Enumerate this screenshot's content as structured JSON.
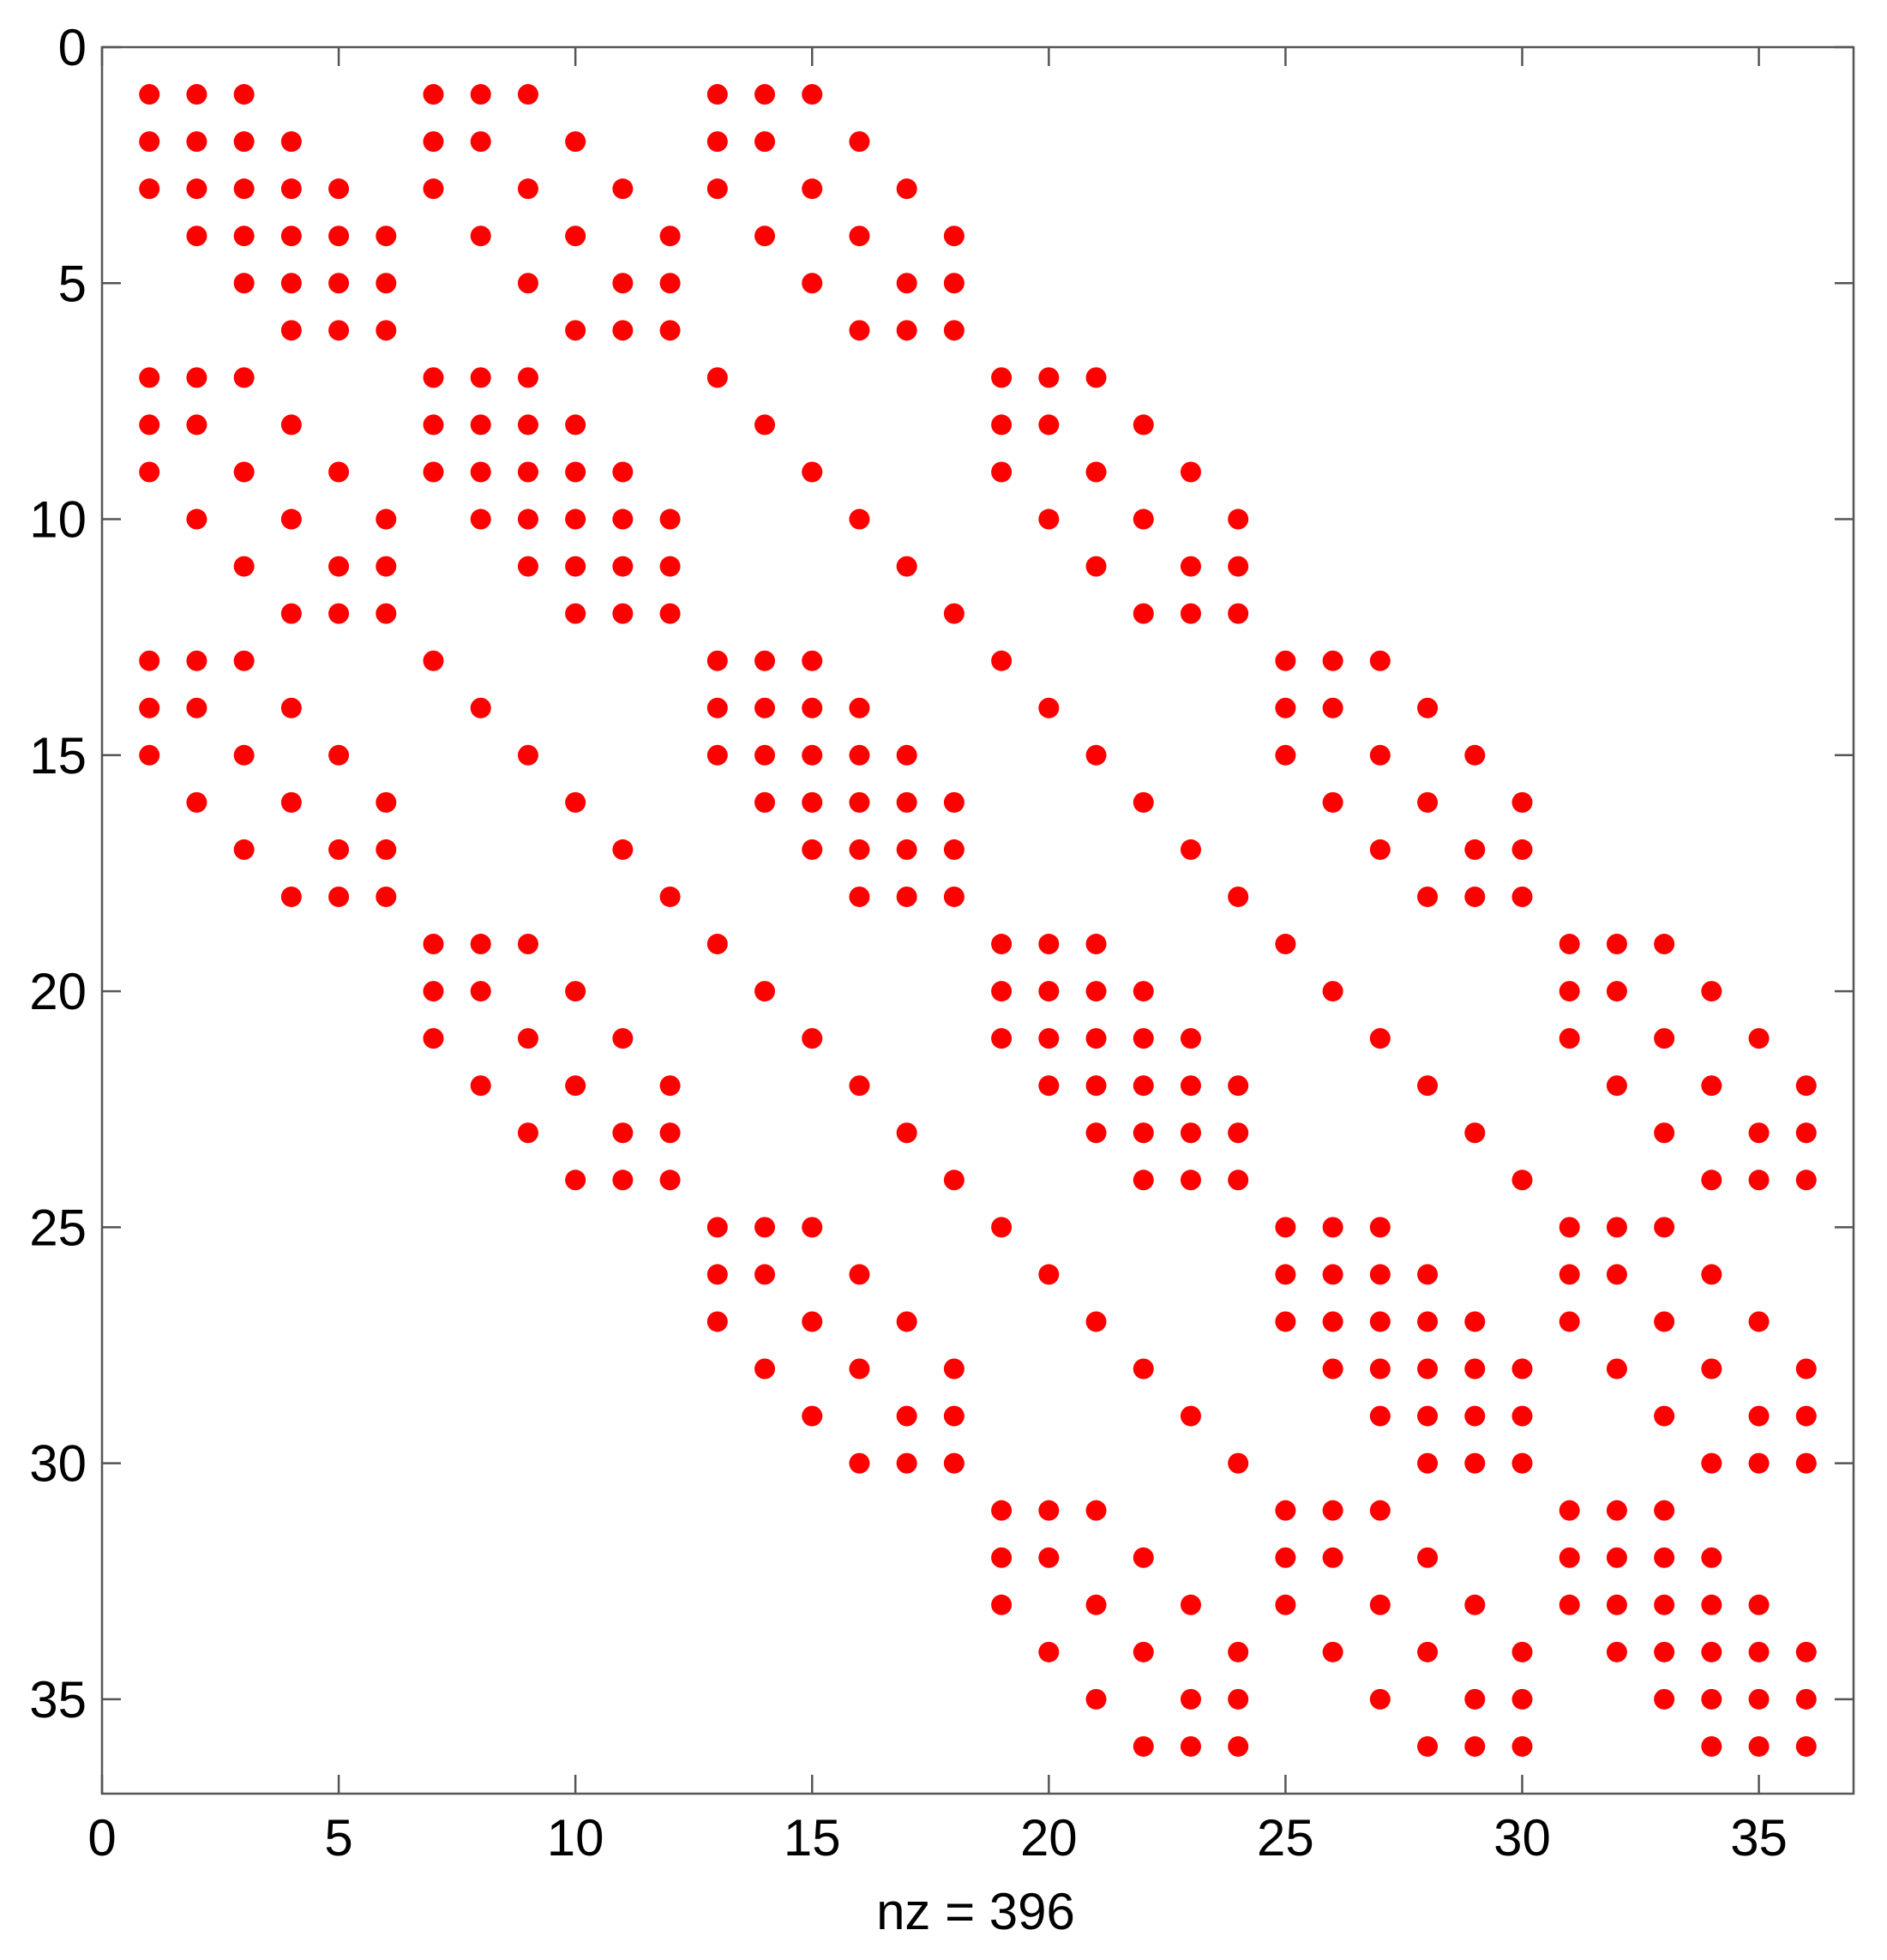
{
  "chart_data": {
    "type": "spy",
    "xlabel": "nz = 396",
    "color": "#ff0000",
    "xlim": [
      0,
      37
    ],
    "ylim": [
      0,
      37
    ],
    "y_reversed": true,
    "xticks": [
      0,
      5,
      10,
      15,
      20,
      25,
      30,
      35
    ],
    "yticks": [
      0,
      5,
      10,
      15,
      20,
      25,
      30,
      35
    ],
    "rows": [
      {
        "y": 1,
        "x": [
          1,
          2,
          3,
          7,
          8,
          9,
          13,
          14,
          15
        ]
      },
      {
        "y": 2,
        "x": [
          1,
          2,
          3,
          4,
          7,
          8,
          10,
          13,
          14,
          16
        ]
      },
      {
        "y": 3,
        "x": [
          1,
          2,
          3,
          4,
          5,
          7,
          9,
          11,
          13,
          15,
          17
        ]
      },
      {
        "y": 4,
        "x": [
          2,
          3,
          4,
          5,
          6,
          8,
          10,
          12,
          14,
          16,
          18
        ]
      },
      {
        "y": 5,
        "x": [
          3,
          4,
          5,
          6,
          9,
          11,
          12,
          15,
          17,
          18
        ]
      },
      {
        "y": 6,
        "x": [
          4,
          5,
          6,
          10,
          11,
          12,
          16,
          17,
          18
        ]
      },
      {
        "y": 7,
        "x": [
          1,
          2,
          3,
          7,
          8,
          9,
          13,
          19,
          20,
          21
        ]
      },
      {
        "y": 8,
        "x": [
          1,
          2,
          4,
          7,
          8,
          9,
          10,
          14,
          19,
          20,
          22
        ]
      },
      {
        "y": 9,
        "x": [
          1,
          3,
          5,
          7,
          8,
          9,
          10,
          11,
          15,
          19,
          21,
          23
        ]
      },
      {
        "y": 10,
        "x": [
          2,
          4,
          6,
          8,
          9,
          10,
          11,
          12,
          16,
          20,
          22,
          24
        ]
      },
      {
        "y": 11,
        "x": [
          3,
          5,
          6,
          9,
          10,
          11,
          12,
          17,
          21,
          23,
          24
        ]
      },
      {
        "y": 12,
        "x": [
          4,
          5,
          6,
          10,
          11,
          12,
          18,
          22,
          23,
          24
        ]
      },
      {
        "y": 13,
        "x": [
          1,
          2,
          3,
          7,
          13,
          14,
          15,
          19,
          25,
          26,
          27
        ]
      },
      {
        "y": 14,
        "x": [
          1,
          2,
          4,
          8,
          13,
          14,
          15,
          16,
          20,
          25,
          26,
          28
        ]
      },
      {
        "y": 15,
        "x": [
          1,
          3,
          5,
          9,
          13,
          14,
          15,
          16,
          17,
          21,
          25,
          27,
          29
        ]
      },
      {
        "y": 16,
        "x": [
          2,
          4,
          6,
          10,
          14,
          15,
          16,
          17,
          18,
          22,
          26,
          28,
          30
        ]
      },
      {
        "y": 17,
        "x": [
          3,
          5,
          6,
          11,
          15,
          16,
          17,
          18,
          23,
          27,
          29,
          30
        ]
      },
      {
        "y": 18,
        "x": [
          4,
          5,
          6,
          12,
          16,
          17,
          18,
          24,
          28,
          29,
          30
        ]
      },
      {
        "y": 19,
        "x": [
          7,
          8,
          9,
          13,
          19,
          20,
          21,
          25,
          31,
          32,
          33
        ]
      },
      {
        "y": 20,
        "x": [
          7,
          8,
          10,
          14,
          19,
          20,
          21,
          22,
          26,
          31,
          32,
          34
        ]
      },
      {
        "y": 21,
        "x": [
          7,
          9,
          11,
          15,
          19,
          20,
          21,
          22,
          23,
          27,
          31,
          33,
          35
        ]
      },
      {
        "y": 22,
        "x": [
          8,
          10,
          12,
          16,
          20,
          21,
          22,
          23,
          24,
          28,
          32,
          34,
          36
        ]
      },
      {
        "y": 23,
        "x": [
          9,
          11,
          12,
          17,
          21,
          22,
          23,
          24,
          29,
          33,
          35,
          36
        ]
      },
      {
        "y": 24,
        "x": [
          10,
          11,
          12,
          18,
          22,
          23,
          24,
          30,
          34,
          35,
          36
        ]
      },
      {
        "y": 25,
        "x": [
          13,
          14,
          15,
          19,
          25,
          26,
          27,
          31,
          32,
          33
        ]
      },
      {
        "y": 26,
        "x": [
          13,
          14,
          16,
          20,
          25,
          26,
          27,
          28,
          31,
          32,
          34
        ]
      },
      {
        "y": 27,
        "x": [
          13,
          15,
          17,
          21,
          25,
          26,
          27,
          28,
          29,
          31,
          33,
          35
        ]
      },
      {
        "y": 28,
        "x": [
          14,
          16,
          18,
          22,
          26,
          27,
          28,
          29,
          30,
          32,
          34,
          36
        ]
      },
      {
        "y": 29,
        "x": [
          15,
          17,
          18,
          23,
          27,
          28,
          29,
          30,
          33,
          35,
          36
        ]
      },
      {
        "y": 30,
        "x": [
          16,
          17,
          18,
          24,
          28,
          29,
          30,
          34,
          35,
          36
        ]
      },
      {
        "y": 31,
        "x": [
          19,
          20,
          21,
          25,
          26,
          27,
          31,
          32,
          33
        ]
      },
      {
        "y": 32,
        "x": [
          19,
          20,
          22,
          25,
          26,
          28,
          31,
          32,
          33,
          34
        ]
      },
      {
        "y": 33,
        "x": [
          19,
          21,
          23,
          25,
          27,
          29,
          31,
          32,
          33,
          34,
          35
        ]
      },
      {
        "y": 34,
        "x": [
          20,
          22,
          24,
          26,
          28,
          30,
          32,
          33,
          34,
          35,
          36
        ]
      },
      {
        "y": 35,
        "x": [
          21,
          23,
          24,
          27,
          29,
          30,
          33,
          34,
          35,
          36
        ]
      },
      {
        "y": 36,
        "x": [
          22,
          23,
          24,
          28,
          29,
          30,
          34,
          35,
          36
        ]
      }
    ]
  }
}
